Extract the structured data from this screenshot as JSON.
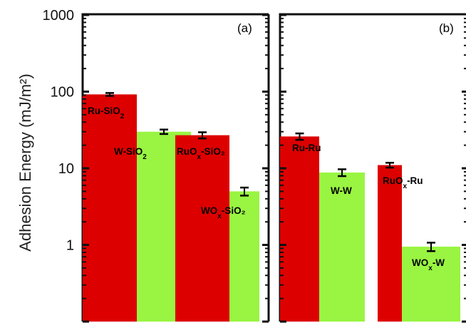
{
  "chart_data": [
    {
      "type": "bar",
      "panel_label": "(a)",
      "ylabel": "Adhesion Energy (mJ/m²)",
      "yscale": "log",
      "ylim": [
        0.1,
        1000
      ],
      "yticks": [
        "1",
        "10",
        "100",
        "1000"
      ],
      "bars": [
        {
          "name": "Ru-SiO2",
          "label_main": "Ru-SiO",
          "label_sub": "2",
          "label_tail": "",
          "value": 92,
          "err": 4,
          "color": "#dd0000"
        },
        {
          "name": "W-SiO2",
          "label_main": "W-SiO",
          "label_sub": "2",
          "label_tail": "",
          "value": 30,
          "err": 2,
          "color": "#99f542"
        },
        {
          "name": "RuOx-SiO2",
          "label_main": "RuO",
          "label_sub": "x",
          "label_tail": "-SiO₂",
          "value": 27,
          "err": 2.5,
          "color": "#dd0000"
        },
        {
          "name": "WOx-SiO2",
          "label_main": "WO",
          "label_sub": "x",
          "label_tail": "-SiO₂",
          "value": 5.0,
          "err": 0.6,
          "color": "#99f542"
        }
      ]
    },
    {
      "type": "bar",
      "panel_label": "(b)",
      "yscale": "log",
      "ylim": [
        0.1,
        1000
      ],
      "bars": [
        {
          "name": "Ru-Ru",
          "label_main": "Ru-Ru",
          "label_sub": "",
          "label_tail": "",
          "value": 26,
          "err": 2.5,
          "color": "#dd0000"
        },
        {
          "name": "W-W",
          "label_main": "W-W",
          "label_sub": "",
          "label_tail": "",
          "value": 8.8,
          "err": 0.9,
          "color": "#99f542"
        },
        {
          "name": "RuOx-Ru",
          "label_main": "RuO",
          "label_sub": "x",
          "label_tail": "-Ru",
          "value": 11,
          "err": 0.8,
          "color": "#dd0000"
        },
        {
          "name": "WOx-W",
          "label_main": "WO",
          "label_sub": "x",
          "label_tail": "-W",
          "value": 0.95,
          "err": 0.12,
          "color": "#99f542"
        }
      ]
    }
  ]
}
